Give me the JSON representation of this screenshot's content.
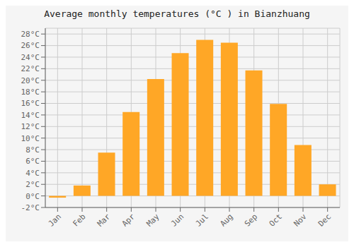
{
  "chart_data": {
    "type": "bar",
    "title": "Average monthly temperatures (°C ) in Bianzhuang",
    "categories": [
      "Jan",
      "Feb",
      "Mar",
      "Apr",
      "May",
      "Jun",
      "Jul",
      "Aug",
      "Sep",
      "Oct",
      "Nov",
      "Dec"
    ],
    "values": [
      -0.3,
      1.8,
      7.5,
      14.5,
      20.2,
      24.7,
      27.0,
      26.5,
      21.7,
      15.9,
      8.8,
      2.0
    ],
    "color": "#FFA726",
    "ylim": [
      -2,
      29
    ],
    "yticks": [
      {
        "value": -2,
        "label": "-2°C"
      },
      {
        "value": 0,
        "label": "0°C"
      },
      {
        "value": 2,
        "label": "2°C"
      },
      {
        "value": 4,
        "label": "4°C"
      },
      {
        "value": 6,
        "label": "6°C"
      },
      {
        "value": 8,
        "label": "8°C"
      },
      {
        "value": 10,
        "label": "10°C"
      },
      {
        "value": 12,
        "label": "12°C"
      },
      {
        "value": 14,
        "label": "14°C"
      },
      {
        "value": 16,
        "label": "16°C"
      },
      {
        "value": 18,
        "label": "18°C"
      },
      {
        "value": 20,
        "label": "20°C"
      },
      {
        "value": 22,
        "label": "22°C"
      },
      {
        "value": 24,
        "label": "24°C"
      },
      {
        "value": 26,
        "label": "26°C"
      },
      {
        "value": 28,
        "label": "28°C"
      }
    ],
    "grid": true
  }
}
